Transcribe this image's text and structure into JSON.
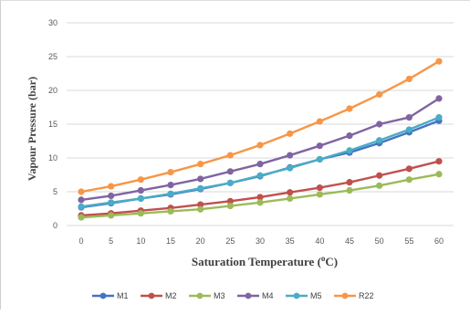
{
  "chart_data": {
    "type": "line",
    "title": "",
    "xlabel": "Saturation Temperature (°C)",
    "xlabel_parts": [
      "Saturation Temperature (",
      "o",
      "C)"
    ],
    "ylabel": "Vapour Pressure (bar)",
    "x": [
      0,
      5,
      10,
      15,
      20,
      25,
      30,
      35,
      40,
      45,
      50,
      55,
      60
    ],
    "ylim": [
      0,
      30
    ],
    "yticks": [
      0,
      5,
      10,
      15,
      20,
      25,
      30
    ],
    "grid": "horizontal",
    "legend": "bottom",
    "series": [
      {
        "name": "M1",
        "color": "#4472c4",
        "values": [
          2.7,
          3.3,
          4.0,
          4.6,
          5.4,
          6.3,
          7.3,
          8.6,
          9.8,
          10.8,
          12.2,
          13.8,
          15.5
        ]
      },
      {
        "name": "M2",
        "color": "#c0504d",
        "values": [
          1.5,
          1.8,
          2.2,
          2.6,
          3.1,
          3.6,
          4.2,
          4.9,
          5.6,
          6.4,
          7.4,
          8.4,
          9.5
        ]
      },
      {
        "name": "M3",
        "color": "#9bbb59",
        "values": [
          1.2,
          1.5,
          1.8,
          2.1,
          2.4,
          2.9,
          3.4,
          4.0,
          4.6,
          5.2,
          5.9,
          6.8,
          7.6
        ]
      },
      {
        "name": "M4",
        "color": "#8064a2",
        "values": [
          3.8,
          4.4,
          5.2,
          6.0,
          6.9,
          8.0,
          9.1,
          10.4,
          11.8,
          13.3,
          15.0,
          16.0,
          18.8
        ]
      },
      {
        "name": "M5",
        "color": "#4bacc6",
        "values": [
          2.8,
          3.4,
          4.0,
          4.7,
          5.5,
          6.3,
          7.4,
          8.5,
          9.8,
          11.1,
          12.6,
          14.2,
          16.0
        ]
      },
      {
        "name": "R22",
        "color": "#f79646",
        "values": [
          5.0,
          5.8,
          6.8,
          7.9,
          9.1,
          10.4,
          11.9,
          13.6,
          15.4,
          17.3,
          19.4,
          21.7,
          24.3
        ]
      }
    ]
  }
}
